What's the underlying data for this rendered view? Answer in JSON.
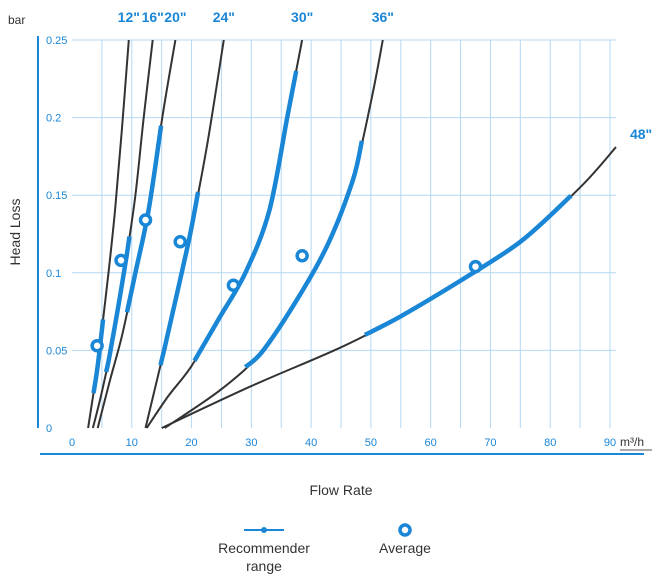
{
  "chart_data": {
    "type": "line",
    "xlabel": "Flow Rate",
    "ylabel": "Head Loss",
    "x_unit": "m³/h",
    "y_unit": "bar",
    "xlim": [
      0,
      90
    ],
    "ylim": [
      0,
      0.25
    ],
    "x_ticks": [
      "0",
      "10",
      "20",
      "30",
      "40",
      "50",
      "60",
      "70",
      "80",
      "90"
    ],
    "y_ticks": [
      "0",
      "0.05",
      "0.1",
      "0.15",
      "0.2",
      "0.25"
    ],
    "grid": true,
    "series": [
      {
        "name": "12\"",
        "x": [
          2.7,
          3.5,
          4.3,
          5.2,
          6.1,
          7.2,
          8.3,
          9.5
        ],
        "y": [
          0.0,
          0.02,
          0.04,
          0.07,
          0.1,
          0.14,
          0.19,
          0.25
        ],
        "recommended_range": [
          3.6,
          5.2
        ],
        "average": {
          "x": 4.2,
          "y": 0.053
        }
      },
      {
        "name": "16\"",
        "x": [
          3.5,
          4.8,
          6.2,
          7.6,
          9.1,
          10.6,
          12.0,
          13.5
        ],
        "y": [
          0.0,
          0.02,
          0.045,
          0.075,
          0.11,
          0.15,
          0.2,
          0.25
        ],
        "recommended_range": [
          5.7,
          9.6
        ],
        "average": {
          "x": 8.2,
          "y": 0.108
        }
      },
      {
        "name": "20\"",
        "x": [
          4.3,
          6.3,
          8.4,
          10.6,
          12.8,
          15.1,
          17.3
        ],
        "y": [
          0.0,
          0.03,
          0.06,
          0.1,
          0.14,
          0.2,
          0.25
        ],
        "recommended_range": [
          9.2,
          14.9
        ],
        "average": {
          "x": 12.3,
          "y": 0.134
        }
      },
      {
        "name": "24\"",
        "x": [
          12.3,
          16.0,
          19.5,
          22.5,
          25.4
        ],
        "y": [
          0.0,
          0.06,
          0.12,
          0.18,
          0.25
        ],
        "recommended_range": [
          14.8,
          21.1
        ],
        "average": {
          "x": 18.1,
          "y": 0.12
        }
      },
      {
        "name": "30\"",
        "x": [
          12.5,
          16.0,
          20.0,
          24.5,
          29.0,
          33.0,
          36.0,
          38.5
        ],
        "y": [
          0.0,
          0.02,
          0.04,
          0.07,
          0.1,
          0.14,
          0.2,
          0.25
        ],
        "recommended_range": [
          20.5,
          37.5
        ],
        "average": {
          "x": 27.0,
          "y": 0.092
        }
      },
      {
        "name": "36\"",
        "x": [
          15.5,
          25.0,
          32.0,
          38.0,
          43.0,
          47.0,
          50.0,
          52.0
        ],
        "y": [
          0.0,
          0.025,
          0.05,
          0.085,
          0.12,
          0.16,
          0.21,
          0.25
        ],
        "recommended_range": [
          29.0,
          48.5
        ],
        "average": {
          "x": 38.5,
          "y": 0.111
        }
      },
      {
        "name": "48\"",
        "x": [
          15.0,
          30.0,
          45.0,
          55.0,
          65.0,
          75.0,
          85.0,
          91.0
        ],
        "y": [
          0.0,
          0.027,
          0.052,
          0.072,
          0.095,
          0.12,
          0.155,
          0.181
        ],
        "recommended_range": [
          49.0,
          83.5
        ],
        "average": {
          "x": 67.5,
          "y": 0.104
        }
      }
    ],
    "legend": {
      "placement": "bottom",
      "items": [
        {
          "label": "Recommender range",
          "symbol": "line-with-dot"
        },
        {
          "label": "Average",
          "symbol": "ring"
        }
      ]
    },
    "colors": {
      "curve": "#333333",
      "highlight": "#1a86d6",
      "grid": "#b6d8f2",
      "axis": "#1a86d6",
      "text": "#333333"
    }
  }
}
